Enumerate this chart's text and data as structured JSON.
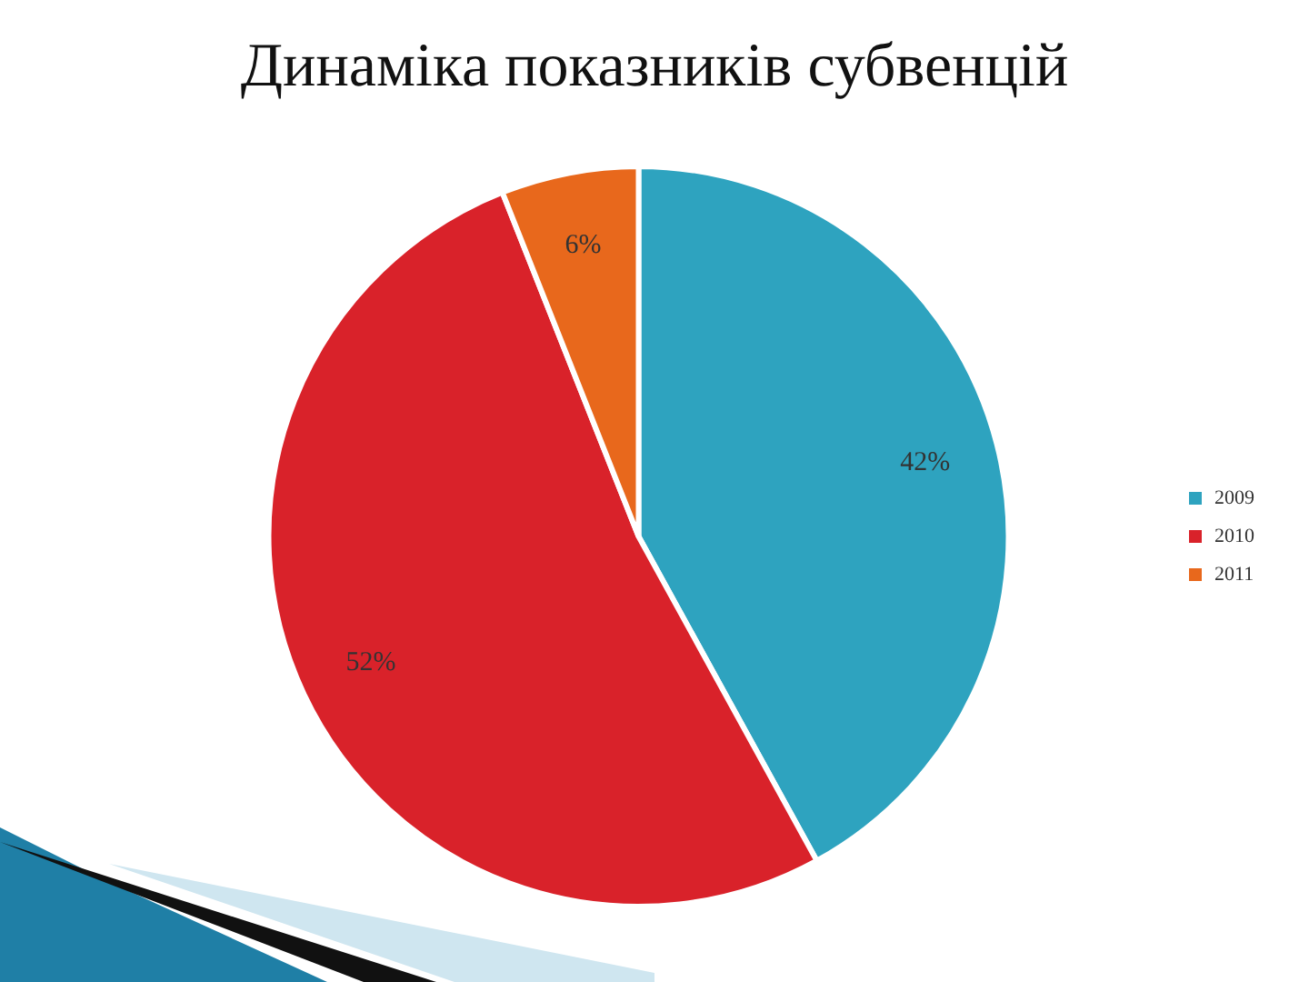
{
  "chart_data": {
    "type": "pie",
    "title": "Динаміка показників субвенцій",
    "categories": [
      "2009",
      "2010",
      "2011"
    ],
    "values": [
      42,
      52,
      6
    ],
    "colors": [
      "#2ea3bf",
      "#d9222a",
      "#e8681c"
    ],
    "value_labels": [
      "42%",
      "52%",
      "6%"
    ],
    "legend": "right"
  }
}
